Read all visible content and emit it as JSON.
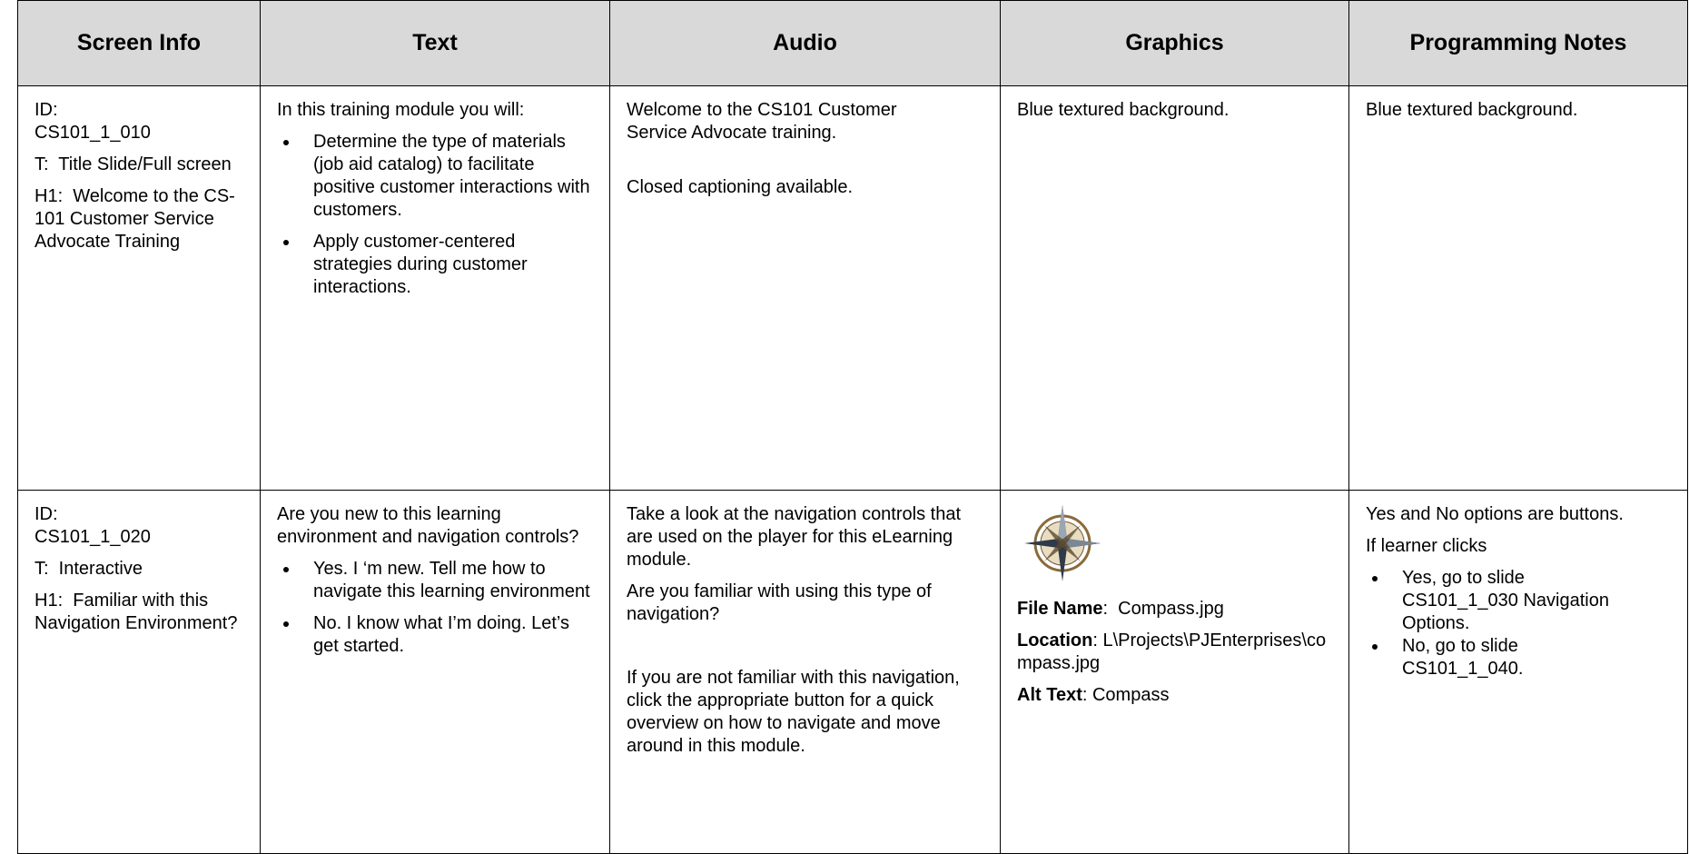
{
  "header": {
    "columns": [
      "Screen Info",
      "Text",
      "Audio",
      "Graphics",
      "Programming Notes"
    ]
  },
  "rows": [
    {
      "screen_info": [
        "ID: CS101_1_010",
        "T:  Title Slide/Full screen",
        "H1:  Welcome to the CS-101 Customer Service Advocate Training"
      ],
      "text": {
        "intro": "In this training module you will:",
        "bullets": [
          "Determine the type of materials (job aid catalog) to facilitate positive customer interactions with customers.",
          "Apply customer-centered strategies during customer interactions."
        ]
      },
      "audio": [
        "Welcome to the CS101 Customer Service Advocate training.",
        "Closed captioning available."
      ],
      "graphics": [
        "Blue textured background."
      ],
      "programming_notes": [
        "Blue textured background."
      ]
    },
    {
      "screen_info": [
        "ID: CS101_1_020",
        "T:  Interactive",
        "H1:  Familiar with this Navigation Environment?"
      ],
      "text": {
        "intro": "Are you new to this learning environment and navigation controls?",
        "bullets": [
          "Yes. I ‘m new. Tell me how to navigate this learning environment",
          "No. I know what I’m doing. Let’s get started."
        ]
      },
      "audio": [
        "Take a look at the navigation controls that are used on the player for this eLearning module.",
        "Are you familiar with using this type of navigation?",
        "If you are not familiar with this navigation, click the appropriate button for a quick overview on how to navigate and move around in this module."
      ],
      "graphics": {
        "fields": [
          {
            "label": "File Name",
            "value": ":  Compass.jpg"
          },
          {
            "label": "Location",
            "value": ": L\\Projects\\PJEnterprises\\compass.jpg"
          },
          {
            "label": "Alt Text",
            "value": ": Compass"
          }
        ]
      },
      "programming_notes": {
        "intro": [
          "Yes and No options are buttons.",
          "If learner clicks"
        ],
        "bullets": [
          "Yes, go to slide CS101_1_030 Navigation Options.",
          "No, go to slide CS101_1_040."
        ]
      }
    }
  ]
}
